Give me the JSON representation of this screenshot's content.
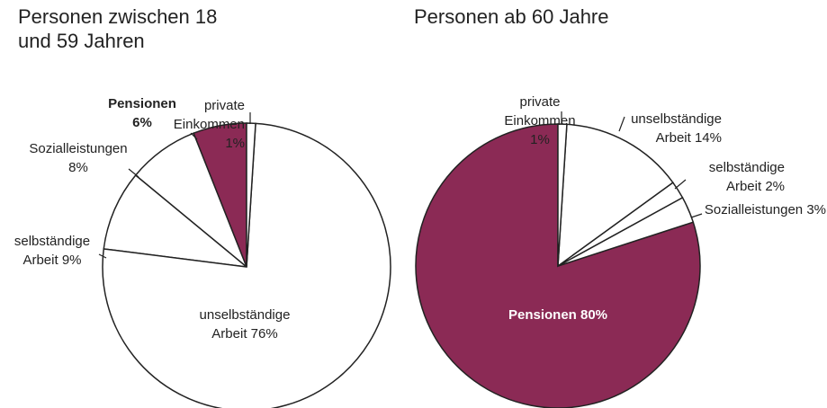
{
  "chart_data": [
    {
      "type": "pie",
      "title": "Personen zwischen 18 und 59 Jahren",
      "categories": [
        "private Einkommen",
        "unselbständige Arbeit",
        "selbständige Arbeit",
        "Sozialleistungen",
        "Pensionen"
      ],
      "values": [
        1,
        76,
        9,
        8,
        6
      ],
      "value_labels": [
        "1%",
        "76%",
        "9%",
        "8%",
        "6%"
      ],
      "colors": [
        "#ffffff",
        "#ffffff",
        "#ffffff",
        "#ffffff",
        "#8b2a55"
      ]
    },
    {
      "type": "pie",
      "title": "Personen ab 60 Jahre",
      "categories": [
        "private Einkommen",
        "unselbständige Arbeit",
        "selbständige Arbeit",
        "Sozialleistungen",
        "Pensionen"
      ],
      "values": [
        1,
        14,
        2,
        3,
        80
      ],
      "value_labels": [
        "1%",
        "14%",
        "2%",
        "3%",
        "80%"
      ],
      "colors": [
        "#ffffff",
        "#ffffff",
        "#ffffff",
        "#ffffff",
        "#8b2a55"
      ]
    }
  ]
}
